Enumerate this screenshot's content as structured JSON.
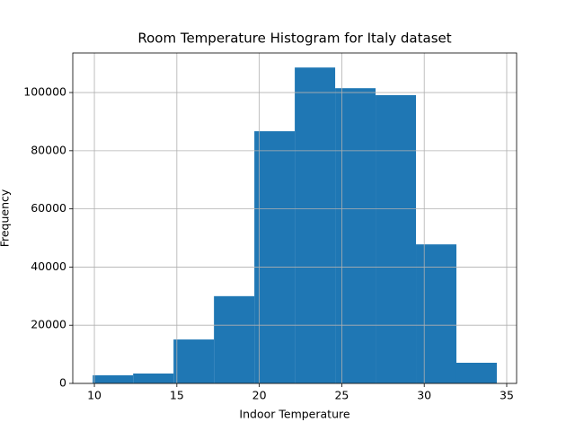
{
  "chart_data": {
    "type": "histogram",
    "title": "Room Temperature Histogram for Italy dataset",
    "xlabel": "Indoor Temperature",
    "ylabel": "Frequency",
    "bins": [
      9.9,
      12.35,
      14.8,
      17.25,
      19.7,
      22.15,
      24.6,
      27.05,
      29.5,
      31.95,
      34.4
    ],
    "values": [
      2800,
      3400,
      15100,
      30000,
      86700,
      108600,
      101500,
      99100,
      47800,
      7100
    ],
    "color": "#1f77b4",
    "xlim": [
      8.69,
      35.6
    ],
    "xticks": [
      10,
      15,
      20,
      25,
      30,
      35
    ],
    "ylim": [
      0,
      113600
    ],
    "yticks": [
      0,
      20000,
      40000,
      60000,
      80000,
      100000
    ],
    "grid": true
  }
}
